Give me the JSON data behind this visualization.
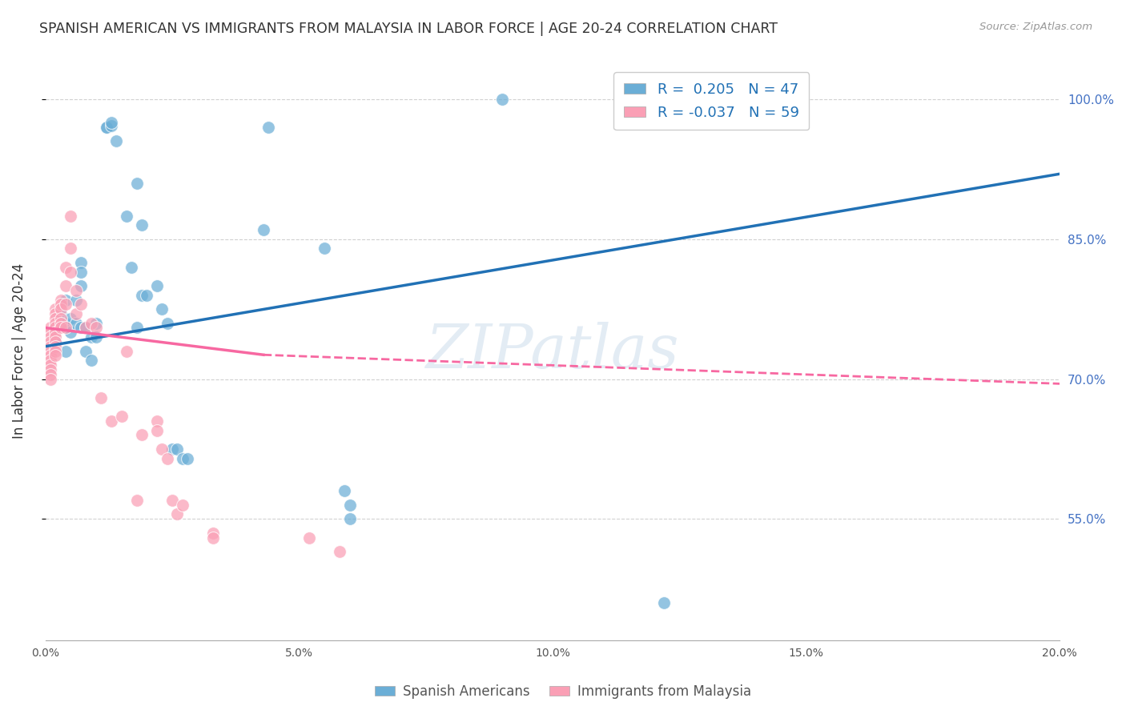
{
  "title": "SPANISH AMERICAN VS IMMIGRANTS FROM MALAYSIA IN LABOR FORCE | AGE 20-24 CORRELATION CHART",
  "source": "Source: ZipAtlas.com",
  "ylabel": "In Labor Force | Age 20-24",
  "y_ticks": [
    55.0,
    70.0,
    85.0,
    100.0
  ],
  "y_tick_labels": [
    "55.0%",
    "70.0%",
    "85.0%",
    "100.0%"
  ],
  "legend_blue_r": "0.205",
  "legend_blue_n": "47",
  "legend_pink_r": "-0.037",
  "legend_pink_n": "59",
  "legend_label_blue": "Spanish Americans",
  "legend_label_pink": "Immigrants from Malaysia",
  "blue_color": "#6baed6",
  "pink_color": "#fa9fb5",
  "blue_line_color": "#2171b5",
  "pink_line_color": "#f768a1",
  "watermark": "ZIPatlas",
  "blue_points": [
    [
      0.002,
      0.755
    ],
    [
      0.002,
      0.74
    ],
    [
      0.003,
      0.77
    ],
    [
      0.004,
      0.76
    ],
    [
      0.004,
      0.785
    ],
    [
      0.004,
      0.755
    ],
    [
      0.004,
      0.73
    ],
    [
      0.005,
      0.765
    ],
    [
      0.005,
      0.75
    ],
    [
      0.006,
      0.785
    ],
    [
      0.006,
      0.76
    ],
    [
      0.007,
      0.825
    ],
    [
      0.007,
      0.815
    ],
    [
      0.007,
      0.8
    ],
    [
      0.007,
      0.755
    ],
    [
      0.008,
      0.755
    ],
    [
      0.008,
      0.73
    ],
    [
      0.009,
      0.745
    ],
    [
      0.009,
      0.72
    ],
    [
      0.01,
      0.76
    ],
    [
      0.01,
      0.745
    ],
    [
      0.012,
      0.97
    ],
    [
      0.012,
      0.97
    ],
    [
      0.013,
      0.972
    ],
    [
      0.013,
      0.975
    ],
    [
      0.014,
      0.955
    ],
    [
      0.016,
      0.875
    ],
    [
      0.017,
      0.82
    ],
    [
      0.018,
      0.91
    ],
    [
      0.018,
      0.755
    ],
    [
      0.019,
      0.865
    ],
    [
      0.019,
      0.79
    ],
    [
      0.02,
      0.79
    ],
    [
      0.022,
      0.8
    ],
    [
      0.023,
      0.775
    ],
    [
      0.024,
      0.76
    ],
    [
      0.025,
      0.625
    ],
    [
      0.026,
      0.625
    ],
    [
      0.027,
      0.615
    ],
    [
      0.028,
      0.615
    ],
    [
      0.043,
      0.86
    ],
    [
      0.044,
      0.97
    ],
    [
      0.055,
      0.84
    ],
    [
      0.059,
      0.58
    ],
    [
      0.06,
      0.565
    ],
    [
      0.06,
      0.55
    ],
    [
      0.09,
      1.0
    ],
    [
      0.122,
      0.46
    ]
  ],
  "pink_points": [
    [
      0.001,
      0.755
    ],
    [
      0.001,
      0.75
    ],
    [
      0.001,
      0.745
    ],
    [
      0.001,
      0.74
    ],
    [
      0.001,
      0.735
    ],
    [
      0.001,
      0.73
    ],
    [
      0.001,
      0.725
    ],
    [
      0.001,
      0.72
    ],
    [
      0.001,
      0.715
    ],
    [
      0.001,
      0.71
    ],
    [
      0.001,
      0.705
    ],
    [
      0.001,
      0.7
    ],
    [
      0.002,
      0.775
    ],
    [
      0.002,
      0.77
    ],
    [
      0.002,
      0.765
    ],
    [
      0.002,
      0.76
    ],
    [
      0.002,
      0.755
    ],
    [
      0.002,
      0.75
    ],
    [
      0.002,
      0.745
    ],
    [
      0.002,
      0.74
    ],
    [
      0.002,
      0.735
    ],
    [
      0.002,
      0.73
    ],
    [
      0.002,
      0.725
    ],
    [
      0.003,
      0.785
    ],
    [
      0.003,
      0.78
    ],
    [
      0.003,
      0.775
    ],
    [
      0.003,
      0.765
    ],
    [
      0.003,
      0.76
    ],
    [
      0.003,
      0.755
    ],
    [
      0.004,
      0.82
    ],
    [
      0.004,
      0.8
    ],
    [
      0.004,
      0.78
    ],
    [
      0.004,
      0.755
    ],
    [
      0.005,
      0.875
    ],
    [
      0.005,
      0.84
    ],
    [
      0.005,
      0.815
    ],
    [
      0.006,
      0.795
    ],
    [
      0.006,
      0.77
    ],
    [
      0.007,
      0.78
    ],
    [
      0.008,
      0.755
    ],
    [
      0.009,
      0.76
    ],
    [
      0.01,
      0.755
    ],
    [
      0.011,
      0.68
    ],
    [
      0.013,
      0.655
    ],
    [
      0.015,
      0.66
    ],
    [
      0.016,
      0.73
    ],
    [
      0.018,
      0.57
    ],
    [
      0.019,
      0.64
    ],
    [
      0.022,
      0.655
    ],
    [
      0.022,
      0.645
    ],
    [
      0.023,
      0.625
    ],
    [
      0.024,
      0.615
    ],
    [
      0.025,
      0.57
    ],
    [
      0.026,
      0.555
    ],
    [
      0.027,
      0.565
    ],
    [
      0.033,
      0.535
    ],
    [
      0.033,
      0.53
    ],
    [
      0.052,
      0.53
    ],
    [
      0.058,
      0.515
    ]
  ],
  "blue_line": [
    [
      0.0,
      0.735
    ],
    [
      0.2,
      0.92
    ]
  ],
  "pink_line_solid": [
    [
      0.0,
      0.755
    ],
    [
      0.043,
      0.726
    ]
  ],
  "pink_line_dashed": [
    [
      0.043,
      0.726
    ],
    [
      0.2,
      0.695
    ]
  ],
  "xlim": [
    0.0,
    0.2
  ],
  "ylim": [
    0.42,
    1.04
  ],
  "x_ticks": [
    0.0,
    0.05,
    0.1,
    0.15,
    0.2
  ],
  "x_tick_labels": [
    "0.0%",
    "5.0%",
    "10.0%",
    "15.0%",
    "20.0%"
  ]
}
